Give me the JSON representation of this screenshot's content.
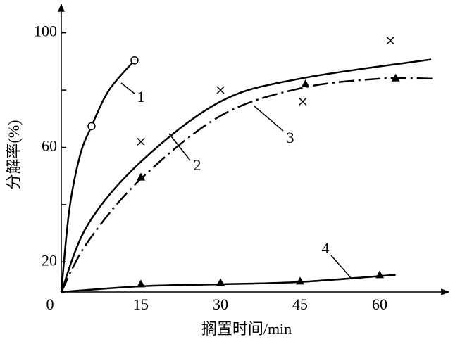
{
  "chart_data": {
    "type": "line",
    "xlabel": "搁置时间/min",
    "ylabel": "分解率(%)",
    "xlim": [
      0,
      73
    ],
    "ylim": [
      9.5,
      110
    ],
    "xticks": [
      0,
      15,
      30,
      45,
      60
    ],
    "yticks": [
      20,
      60,
      100
    ],
    "yminor_ticks": [
      40,
      80
    ],
    "grid": false,
    "series": [
      {
        "name": "1",
        "color": "#000000",
        "marker": "circle",
        "linestyle": "solid",
        "x": [
          5.7,
          13.8
        ],
        "values": [
          67.4,
          90.4
        ],
        "curve_x": [
          0,
          1.5,
          3.5,
          5.7,
          9,
          13.8
        ],
        "curve_values": [
          9.5,
          38,
          57,
          67.4,
          80,
          90.4
        ]
      },
      {
        "name": "2",
        "color": "#000000",
        "marker": "cross",
        "linestyle": "solid",
        "x": [
          15,
          30,
          45.5,
          62
        ],
        "values": [
          62,
          80,
          76,
          97.3
        ],
        "curve_x": [
          0,
          5,
          15,
          30,
          45,
          69.7
        ],
        "curve_values": [
          9.5,
          33,
          55,
          76,
          84,
          90.7
        ]
      },
      {
        "name": "3",
        "color": "#000000",
        "marker": "triangle",
        "linestyle": "dashdot",
        "x": [
          15,
          46,
          63
        ],
        "values": [
          49.4,
          82,
          84
        ],
        "curve_x": [
          0,
          5,
          15,
          30,
          45,
          60,
          70
        ],
        "curve_values": [
          9.5,
          27,
          49,
          71,
          80.6,
          84,
          84
        ]
      },
      {
        "name": "4",
        "color": "#000000",
        "marker": "triangle",
        "linestyle": "solid",
        "x": [
          15,
          30,
          45,
          60
        ],
        "values": [
          12.1,
          12.6,
          13.1,
          15.3
        ],
        "curve_x": [
          0,
          15,
          30,
          45,
          63
        ],
        "curve_values": [
          9.5,
          11.5,
          12.2,
          13,
          15.5
        ]
      }
    ]
  }
}
